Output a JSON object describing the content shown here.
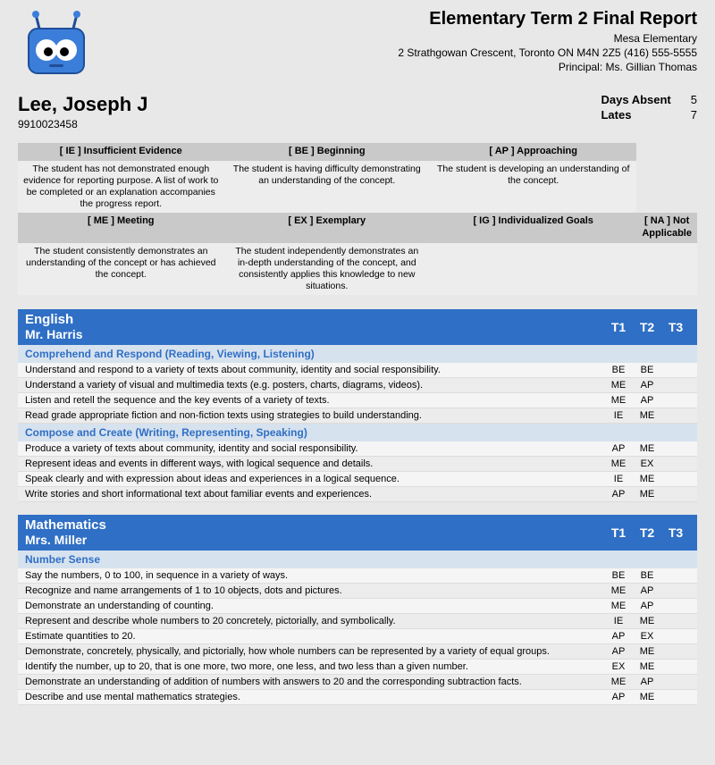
{
  "header": {
    "report_title": "Elementary Term 2 Final Report",
    "school_name": "Mesa Elementary",
    "school_address": "2 Strathgowan Crescent, Toronto ON M4N 2Z5 (416) 555-5555",
    "principal_line": "Principal: Ms. Gillian Thomas"
  },
  "logo": {
    "body_color": "#3b7ed9",
    "dark_color": "#1f4e99",
    "eye_white": "#ffffff",
    "eye_black": "#000000"
  },
  "student": {
    "name": "Lee, Joseph J",
    "id": "9910023458"
  },
  "attendance": {
    "days_absent_label": "Days Absent",
    "days_absent_value": "5",
    "lates_label": "Lates",
    "lates_value": "7"
  },
  "legend": {
    "row1": [
      {
        "code": "[ IE ] Insufficient Evidence",
        "desc": "The student has not demonstrated enough evidence for reporting purpose. A list of work to be completed or an explanation accompanies the progress report."
      },
      {
        "code": "[ BE ] Beginning",
        "desc": "The student is having difficulty demonstrating an understanding of the concept."
      },
      {
        "code": "[ AP ] Approaching",
        "desc": "The student is developing an understanding of the concept."
      }
    ],
    "row2": [
      {
        "code": "[ ME ] Meeting",
        "desc": "The student consistently demonstrates an understanding of the concept or has achieved the concept."
      },
      {
        "code": "[ EX ] Exemplary",
        "desc": "The student independently demonstrates an in-depth understanding of the concept, and consistently applies this knowledge to new situations."
      },
      {
        "code": "[ IG ] Individualized Goals",
        "desc": ""
      },
      {
        "code": "[ NA ] Not Applicable",
        "desc": ""
      }
    ]
  },
  "terms": [
    "T1",
    "T2",
    "T3"
  ],
  "subjects": [
    {
      "name": "English",
      "teacher": "Mr. Harris",
      "strands": [
        {
          "title": "Comprehend and Respond (Reading, Viewing, Listening)",
          "outcomes": [
            {
              "desc": "Understand and respond to a variety of texts about community, identity and social responsibility.",
              "g": [
                "BE",
                "BE",
                ""
              ]
            },
            {
              "desc": "Understand a variety of visual and multimedia texts (e.g. posters, charts, diagrams, videos).",
              "g": [
                "ME",
                "AP",
                ""
              ]
            },
            {
              "desc": "Listen and retell the sequence and the key events of a variety of texts.",
              "g": [
                "ME",
                "AP",
                ""
              ]
            },
            {
              "desc": "Read grade appropriate fiction and non-fiction texts using strategies to build understanding.",
              "g": [
                "IE",
                "ME",
                ""
              ]
            }
          ]
        },
        {
          "title": "Compose and Create (Writing, Representing, Speaking)",
          "outcomes": [
            {
              "desc": "Produce a variety of texts about community, identity and social responsibility.",
              "g": [
                "AP",
                "ME",
                ""
              ]
            },
            {
              "desc": "Represent ideas and events in different ways, with logical sequence and details.",
              "g": [
                "ME",
                "EX",
                ""
              ]
            },
            {
              "desc": "Speak clearly and with expression about ideas and experiences in a logical sequence.",
              "g": [
                "IE",
                "ME",
                ""
              ]
            },
            {
              "desc": "Write stories and short informational text about familiar events and experiences.",
              "g": [
                "AP",
                "ME",
                ""
              ]
            }
          ]
        }
      ]
    },
    {
      "name": "Mathematics",
      "teacher": "Mrs. Miller",
      "strands": [
        {
          "title": "Number Sense",
          "outcomes": [
            {
              "desc": "Say the numbers, 0 to 100, in sequence in a variety of ways.",
              "g": [
                "BE",
                "BE",
                ""
              ]
            },
            {
              "desc": "Recognize and name arrangements of 1 to 10 objects, dots and pictures.",
              "g": [
                "ME",
                "AP",
                ""
              ]
            },
            {
              "desc": "Demonstrate an understanding of counting.",
              "g": [
                "ME",
                "AP",
                ""
              ]
            },
            {
              "desc": "Represent and describe whole numbers to 20 concretely, pictorially, and symbolically.",
              "g": [
                "IE",
                "ME",
                ""
              ]
            },
            {
              "desc": "Estimate quantities to 20.",
              "g": [
                "AP",
                "EX",
                ""
              ]
            },
            {
              "desc": "Demonstrate, concretely, physically, and pictorially, how whole numbers can be represented by a variety of equal groups.",
              "g": [
                "AP",
                "ME",
                ""
              ]
            },
            {
              "desc": "Identify the number, up to 20, that is one more, two more, one less, and two less than a given number.",
              "g": [
                "EX",
                "ME",
                ""
              ]
            },
            {
              "desc": "Demonstrate an understanding of addition of numbers with answers to 20 and the corresponding subtraction facts.",
              "g": [
                "ME",
                "AP",
                ""
              ]
            },
            {
              "desc": "Describe and use mental mathematics strategies.",
              "g": [
                "AP",
                "ME",
                ""
              ]
            }
          ]
        }
      ]
    }
  ],
  "colors": {
    "page_bg": "#e8e8e8",
    "subject_header_bg": "#2f6fc5",
    "strand_header_bg": "#d7e2ef",
    "strand_header_text": "#2f6fc5",
    "legend_header_bg": "#c9c9c9",
    "legend_desc_bg": "#ededed"
  }
}
